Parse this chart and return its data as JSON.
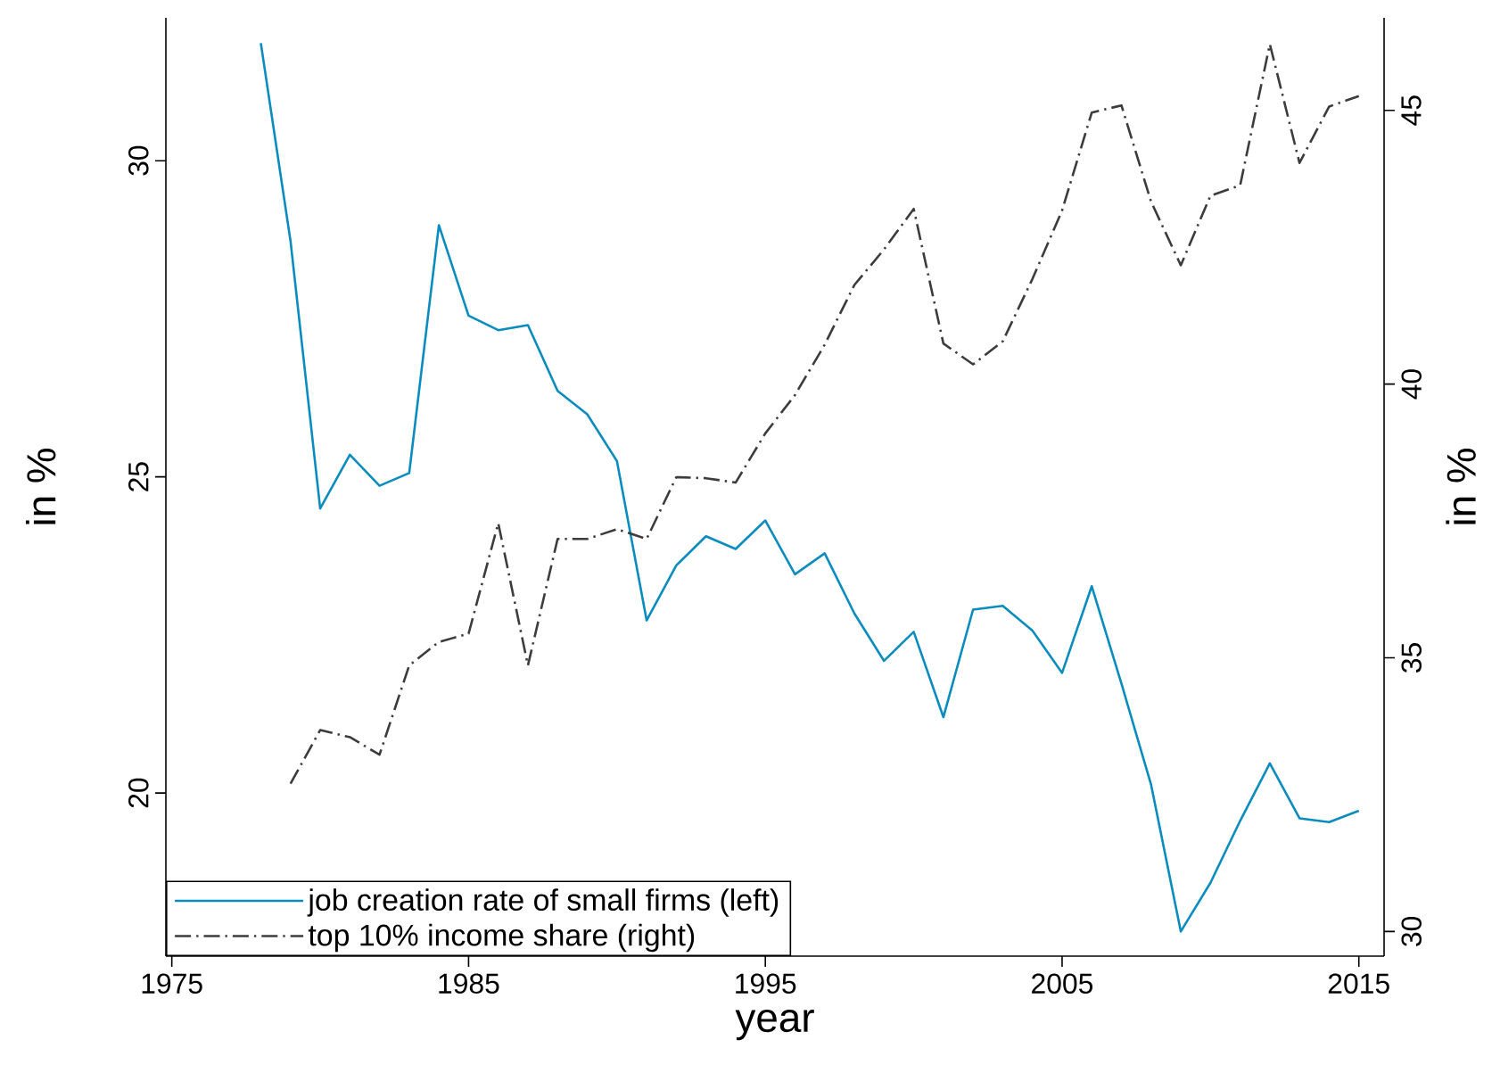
{
  "chart_data": {
    "type": "line",
    "xlabel": "year",
    "ylabel": "in %",
    "y2label": "in %",
    "x": [
      1978,
      1979,
      1980,
      1981,
      1982,
      1983,
      1984,
      1985,
      1986,
      1987,
      1988,
      1989,
      1990,
      1991,
      1992,
      1993,
      1994,
      1995,
      1996,
      1997,
      1998,
      1999,
      2000,
      2001,
      2002,
      2003,
      2004,
      2005,
      2006,
      2007,
      2008,
      2009,
      2010,
      2011,
      2012,
      2013,
      2014,
      2015
    ],
    "series": [
      {
        "name": "job creation rate of small firms (left)",
        "color": "#0a8cbe",
        "line_style": "solid",
        "values": [
          31.86,
          28.73,
          24.5,
          25.35,
          24.86,
          25.06,
          28.98,
          27.55,
          27.32,
          27.4,
          26.36,
          25.99,
          25.25,
          22.73,
          23.6,
          24.06,
          23.86,
          24.31,
          23.46,
          23.79,
          22.84,
          22.09,
          22.55,
          21.2,
          22.9,
          22.96,
          22.57,
          21.9,
          23.27,
          21.73,
          20.13,
          17.81,
          18.58,
          19.56,
          20.47,
          19.6,
          19.54,
          19.72
        ]
      },
      {
        "name": "top 10% income share (right)",
        "color": "#3c3c3c",
        "line_style": "dashed",
        "axis": "y2",
        "values": [
          null,
          32.7,
          33.68,
          33.55,
          33.23,
          34.86,
          35.29,
          35.44,
          37.46,
          34.86,
          37.17,
          37.17,
          37.35,
          37.17,
          38.3,
          38.28,
          38.2,
          39.1,
          39.8,
          40.72,
          41.81,
          42.46,
          43.2,
          40.74,
          40.36,
          40.78,
          41.92,
          43.17,
          44.96,
          45.09,
          43.33,
          42.17,
          43.44,
          43.63,
          46.21,
          44.04,
          45.07,
          45.26
        ]
      }
    ],
    "xlim": [
      1974.8,
      2015.85
    ],
    "xticks": [
      1975,
      1985,
      1995,
      2005,
      2015
    ],
    "ylim": [
      17.42,
      32.26
    ],
    "yticks": [
      20,
      25,
      30
    ],
    "y2lim": [
      29.55,
      46.69
    ],
    "y2ticks": [
      30,
      35,
      40,
      45
    ],
    "legend": "bottom left"
  }
}
